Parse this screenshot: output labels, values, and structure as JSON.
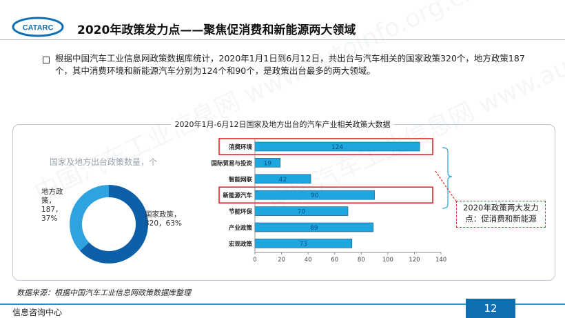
{
  "header": {
    "logo_text": "CATARC",
    "title": "2020年政策发力点——聚焦促消费和新能源两大领域"
  },
  "summary": {
    "text": "根据中国汽车工业信息网政策数据库统计，2020年1月1日到6月12日，共出台与汽车相关的国家政策320个，地方政策187个，其中消费环境和新能源汽车分别为124个和90个，是政策出台最多的两大领域。"
  },
  "panel": {
    "title": "2020年1月-6月12日国家及地方出台的汽车产业相关政策大数据"
  },
  "donut": {
    "legend_title": "国家及地方出台政策数量，个",
    "local_label": "地方政策，187，37%",
    "national_label": "国家政策，320，63%"
  },
  "callout": {
    "text": "2020年政策两大发力点：促消费和新能源"
  },
  "source": {
    "text": "数据来源：根据中国汽车工业信息网政策数据库整理"
  },
  "footer": {
    "department": "信息咨询中心",
    "page_number": "12"
  },
  "watermark": {
    "text": "中国汽车工业信息网 www.autoinfo.org.cn"
  },
  "colors": {
    "primary": "#0f6fb0",
    "bar_fill": "#1ea6df",
    "donut_light": "#2ea3e0",
    "donut_dark": "#0d5fa8",
    "highlight": "#e2262a"
  },
  "chart_data": [
    {
      "type": "pie",
      "title": "国家及地方出台政策数量，个",
      "categories": [
        "国家政策",
        "地方政策"
      ],
      "values": [
        320,
        187
      ],
      "percentages": [
        63,
        37
      ]
    },
    {
      "type": "bar",
      "orientation": "horizontal",
      "categories": [
        "消费环境",
        "国际贸易与投资",
        "智能网联",
        "新能源汽车",
        "节能环保",
        "产业政策",
        "宏观政策"
      ],
      "values": [
        124,
        19,
        42,
        90,
        70,
        89,
        73
      ],
      "xlim": [
        0,
        140
      ],
      "xticks": [
        0,
        20,
        40,
        60,
        80,
        100,
        120,
        140
      ],
      "highlighted": [
        "消费环境",
        "新能源汽车"
      ]
    }
  ]
}
